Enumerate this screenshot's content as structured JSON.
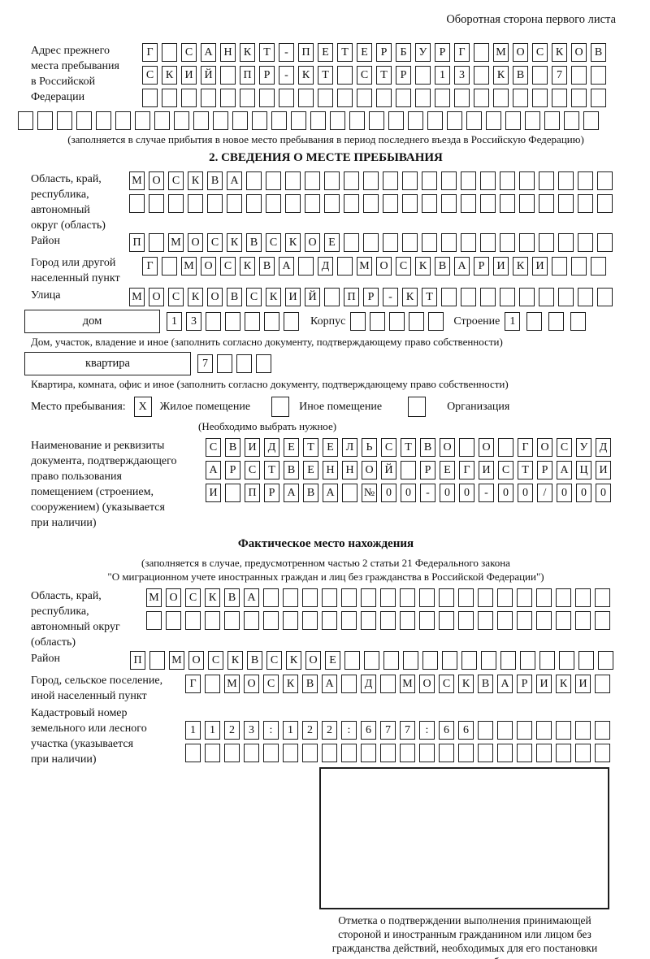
{
  "header": {
    "back_side_note": "Оборотная сторона первого листа"
  },
  "prev_address": {
    "label": "Адрес прежнего\nместа пребывания\nв Российской\nФедерации",
    "rows": [
      {
        "len": 24,
        "text": "Г САНКТ-ПЕТЕРБУРГ МОСКОВ"
      },
      {
        "len": 24,
        "text": "СКИЙ ПР-КТ СТР 13 КВ 7"
      },
      {
        "len": 24,
        "text": ""
      }
    ],
    "wide_row": {
      "len": 30,
      "text": ""
    },
    "note": "(заполняется в случае прибытия в новое место пребывания в период последнего въезда в Российскую Федерацию)"
  },
  "section2": {
    "title": "2. СВЕДЕНИЯ О МЕСТЕ ПРЕБЫВАНИЯ",
    "region": {
      "label": "Область, край,\nреспублика,\nавтономный\nокруг (область)",
      "rows": [
        {
          "len": 25,
          "text": "МОСКВА"
        },
        {
          "len": 25,
          "text": ""
        }
      ]
    },
    "district": {
      "label": "Район",
      "row": {
        "len": 25,
        "text": "П МОСКВСКОЕ"
      }
    },
    "city": {
      "label": "Город или другой\nнаселенный пункт",
      "row": {
        "len": 24,
        "text": "Г МОСКВА Д МОСКВАРИКИ"
      }
    },
    "street": {
      "label": "Улица",
      "row": {
        "len": 25,
        "text": "МОСКОВСКИЙ ПР-КТ"
      }
    },
    "house": {
      "box_label": "дом",
      "row": {
        "len": 7,
        "text": "13"
      },
      "korpus_label": "Корпус",
      "korpus_row": {
        "len": 5,
        "text": ""
      },
      "stroenie_label": "Строение",
      "stroenie_row": {
        "len": 4,
        "text": "1"
      },
      "note": "Дом, участок, владение и иное (заполнить согласно документу, подтверждающему право собственности)"
    },
    "apartment": {
      "box_label": "квартира",
      "row": {
        "len": 4,
        "text": "7"
      },
      "note": "Квартира, комната, офис и иное (заполнить согласно документу, подтверждающему право собственности)"
    },
    "stay_type": {
      "label": "Место пребывания:",
      "options": [
        {
          "mark": "X",
          "label": "Жилое помещение"
        },
        {
          "mark": "",
          "label": "Иное помещение"
        },
        {
          "mark": "",
          "label": "Организация"
        }
      ],
      "note": "(Необходимо выбрать нужное)"
    },
    "document": {
      "label": "Наименование и реквизиты\nдокумента, подтверждающего\nправо пользования\nпомещением (строением,\nсооружением) (указывается\nпри наличии)",
      "rows": [
        {
          "len": 21,
          "text": "СВИДЕТЕЛЬСТВО О ГОСУД"
        },
        {
          "len": 21,
          "text": "АРСТВЕННОЙ РЕГИСТРАЦИ"
        },
        {
          "len": 21,
          "text": "И ПРАВА №00-00-00/000"
        }
      ]
    }
  },
  "actual_location": {
    "title": "Фактическое место нахождения",
    "note1": "(заполняется в случае, предусмотренном частью 2 статьи 21 Федерального закона",
    "note2": "\"О миграционном учете иностранных граждан и лиц без гражданства в Российской Федерации\")",
    "region": {
      "label": "Область, край,\nреспублика,\nавтономный округ\n(область)",
      "rows": [
        {
          "len": 24,
          "text": "МОСКВА"
        },
        {
          "len": 24,
          "text": ""
        }
      ]
    },
    "district": {
      "label": "Район",
      "row": {
        "len": 25,
        "text": "П МОСКВСКОЕ"
      }
    },
    "city": {
      "label": "Город, сельское поселение,\nиной населенный пункт",
      "row": {
        "len": 22,
        "text": "Г МОСКВА Д МОСКВАРИКИ"
      }
    },
    "cadastral": {
      "label": "Кадастровый номер\nземельного или лесного\nучастка (указывается\nпри наличии)",
      "rows": [
        {
          "len": 22,
          "text": "1123:122:677:66"
        },
        {
          "len": 22,
          "text": ""
        }
      ]
    }
  },
  "stamp": {
    "note": "Отметка о подтверждении выполнения принимающей\nстороной и иностранным гражданином или лицом без\nгражданства действий, необходимых для его постановки\nна учет по месту пребывания"
  }
}
